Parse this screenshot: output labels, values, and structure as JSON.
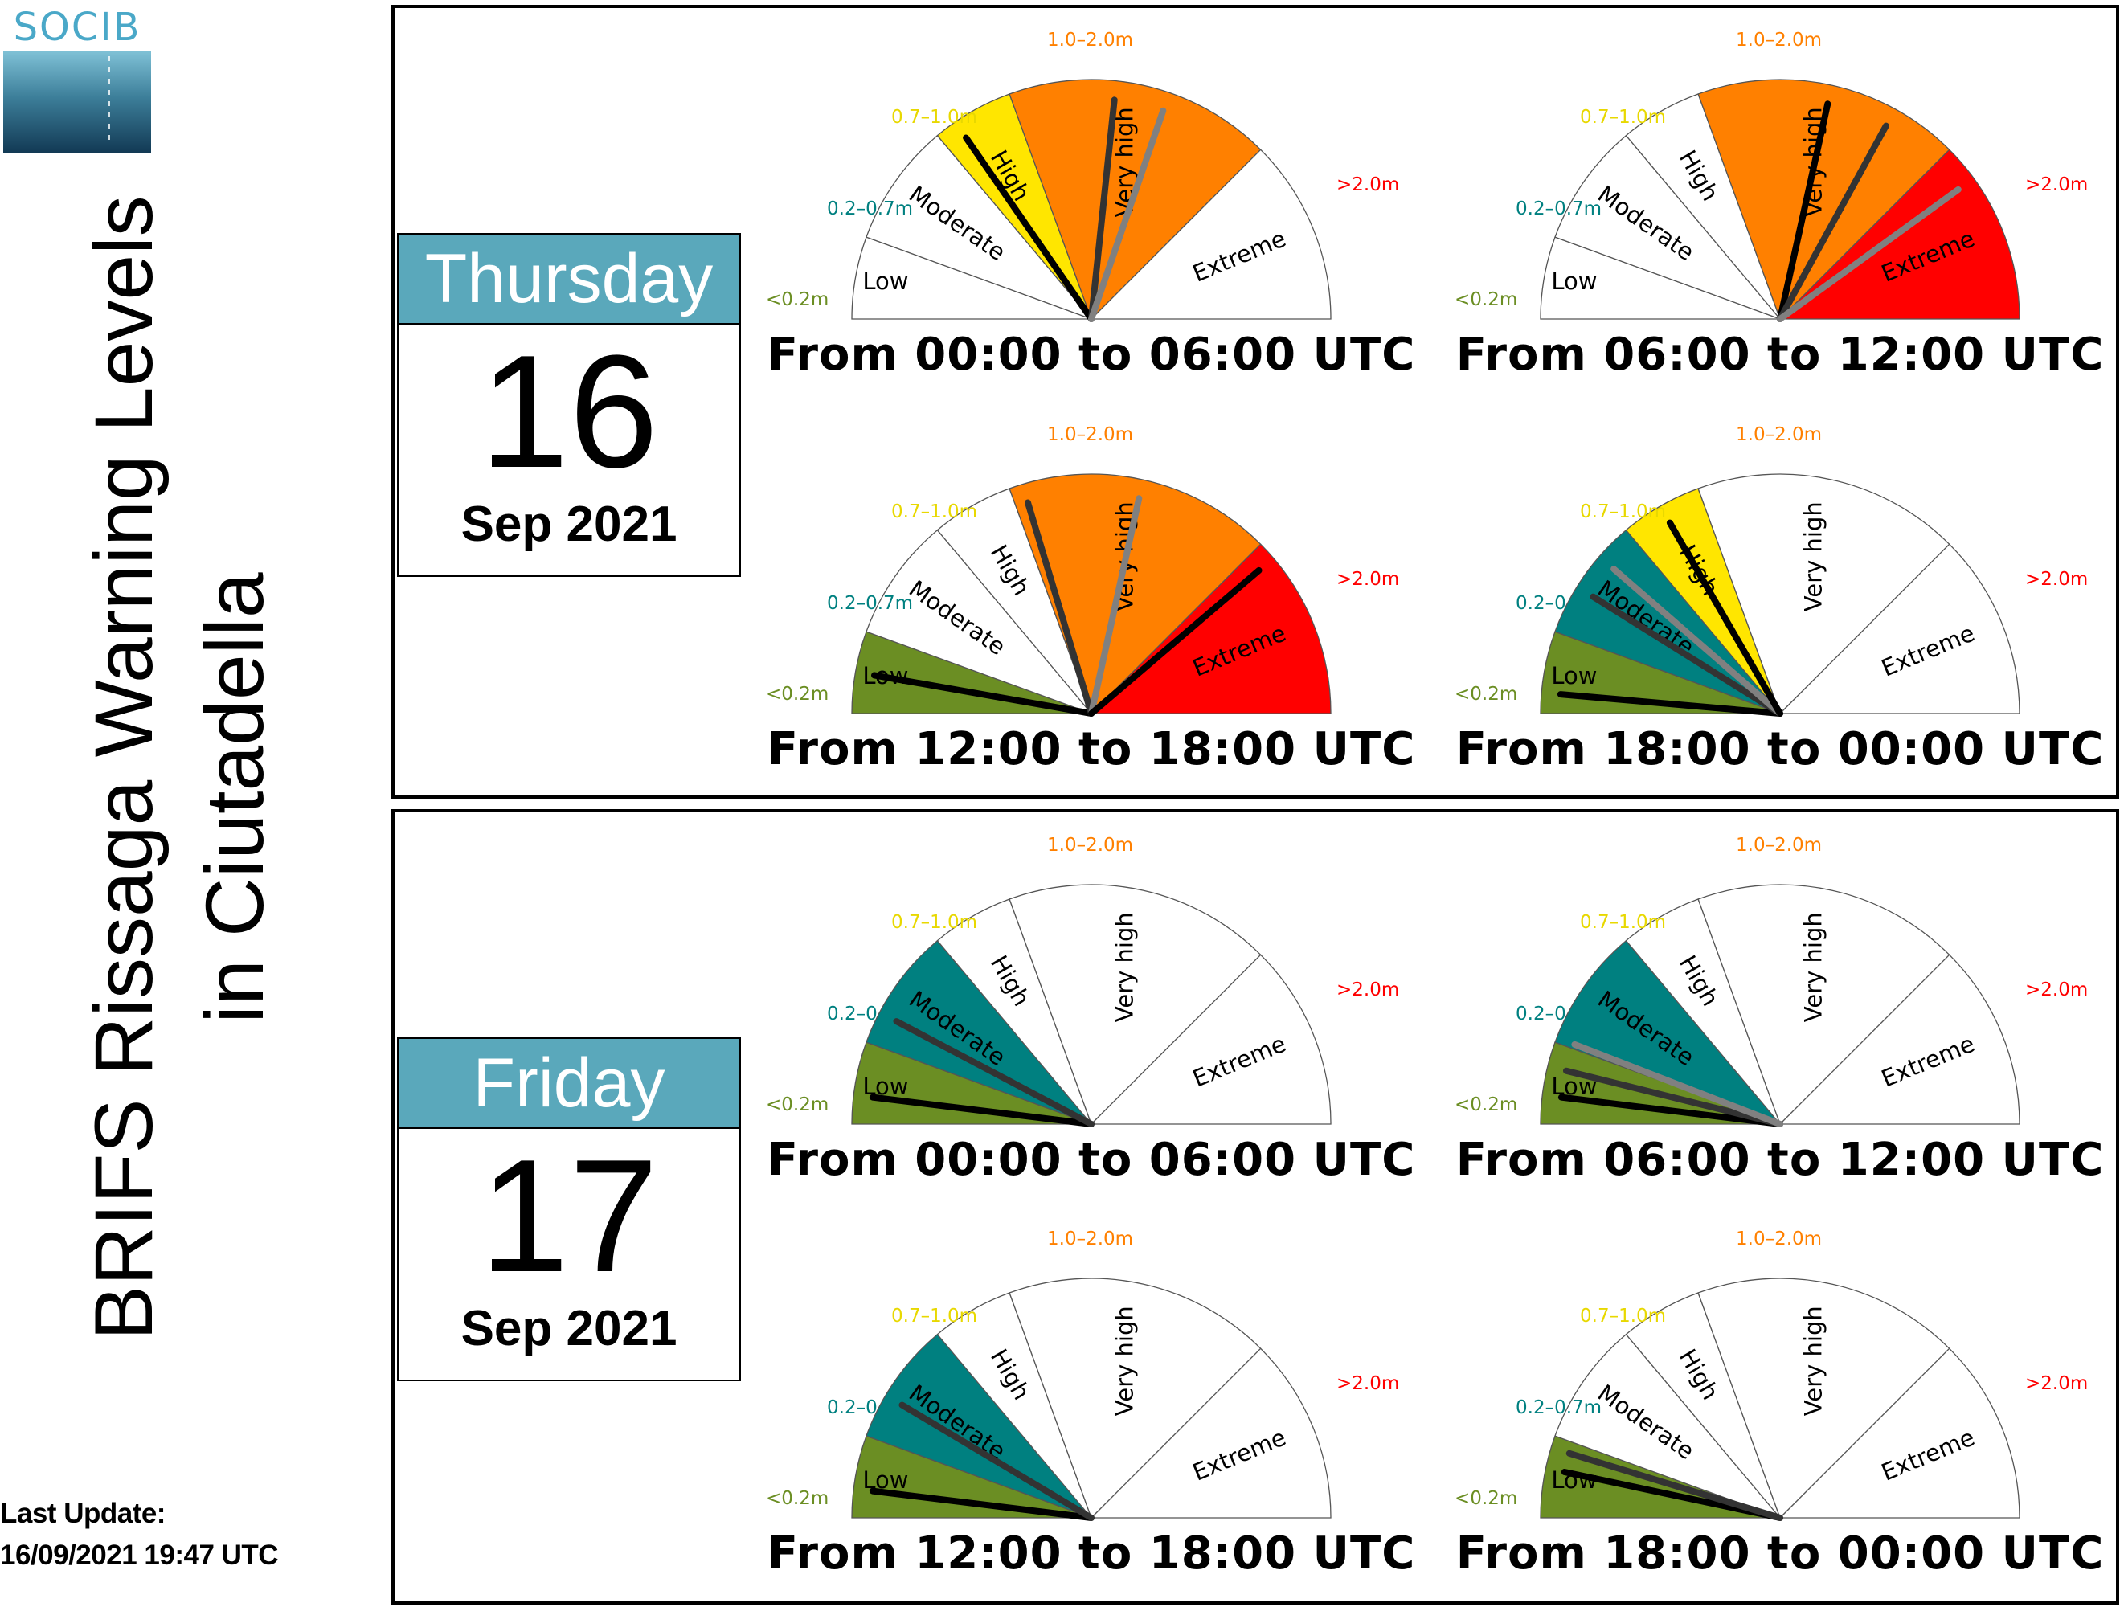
{
  "logo": {
    "text": "SOCIB"
  },
  "title": {
    "line1": "BRIFS Rissaga Warning Levels",
    "line2": "in Ciutadella"
  },
  "last_update": {
    "label": "Last Update:",
    "value": "16/09/2021 19:47 UTC"
  },
  "days": [
    {
      "weekday": "Thursday",
      "day": "16",
      "month": "Sep 2021"
    },
    {
      "weekday": "Friday",
      "day": "17",
      "month": "Sep 2021"
    }
  ],
  "colors": {
    "level_fill": [
      "#6b8e23",
      "#008080",
      "#ffe600",
      "#ff8000",
      "#ff0000"
    ],
    "range_label": [
      "#6b8e23",
      "#008080",
      "#e8d800",
      "#ff8000",
      "#ff0000"
    ],
    "needles": [
      "#000000",
      "#333333",
      "#808080"
    ]
  },
  "chart_data": {
    "type": "gauge",
    "levels": [
      "Low",
      "Moderate",
      "High",
      "Very high",
      "Extreme"
    ],
    "ranges": [
      "<0.2m",
      "0.2–0.7m",
      "0.7–1.0m",
      "1.0–2.0m",
      ">2.0m"
    ],
    "panels": [
      {
        "day": "Thursday 16",
        "period": "From 00:00 to 06:00 UTC",
        "filled": [
          false,
          false,
          true,
          true,
          false
        ],
        "needles_m": [
          0.78,
          1.4,
          1.6
        ]
      },
      {
        "day": "Thursday 16",
        "period": "From 06:00 to 12:00 UTC",
        "filled": [
          false,
          false,
          false,
          true,
          true
        ],
        "needles_m": [
          1.5,
          1.75,
          2.2
        ]
      },
      {
        "day": "Thursday 16",
        "period": "From 12:00 to 18:00 UTC",
        "filled": [
          true,
          false,
          false,
          true,
          true
        ],
        "needles_m": [
          0.1,
          1.05,
          1.5,
          2.1
        ]
      },
      {
        "day": "Thursday 16",
        "period": "From 18:00 to 00:00 UTC",
        "filled": [
          true,
          true,
          true,
          false,
          false
        ],
        "needles_m": [
          0.05,
          0.4,
          0.55,
          0.85
        ]
      },
      {
        "day": "Friday 17",
        "period": "From 00:00 to 06:00 UTC",
        "filled": [
          true,
          true,
          false,
          false,
          false
        ],
        "needles_m": [
          0.07,
          0.33
        ]
      },
      {
        "day": "Friday 17",
        "period": "From 06:00 to 12:00 UTC",
        "filled": [
          true,
          true,
          false,
          false,
          false
        ],
        "needles_m": [
          0.07,
          0.14,
          0.22
        ]
      },
      {
        "day": "Friday 17",
        "period": "From 12:00 to 18:00 UTC",
        "filled": [
          true,
          true,
          false,
          false,
          false
        ],
        "needles_m": [
          0.07,
          0.38
        ]
      },
      {
        "day": "Friday 17",
        "period": "From 18:00 to 00:00 UTC",
        "filled": [
          true,
          false,
          false,
          false,
          false
        ],
        "needles_m": [
          0.12,
          0.17
        ]
      }
    ]
  }
}
